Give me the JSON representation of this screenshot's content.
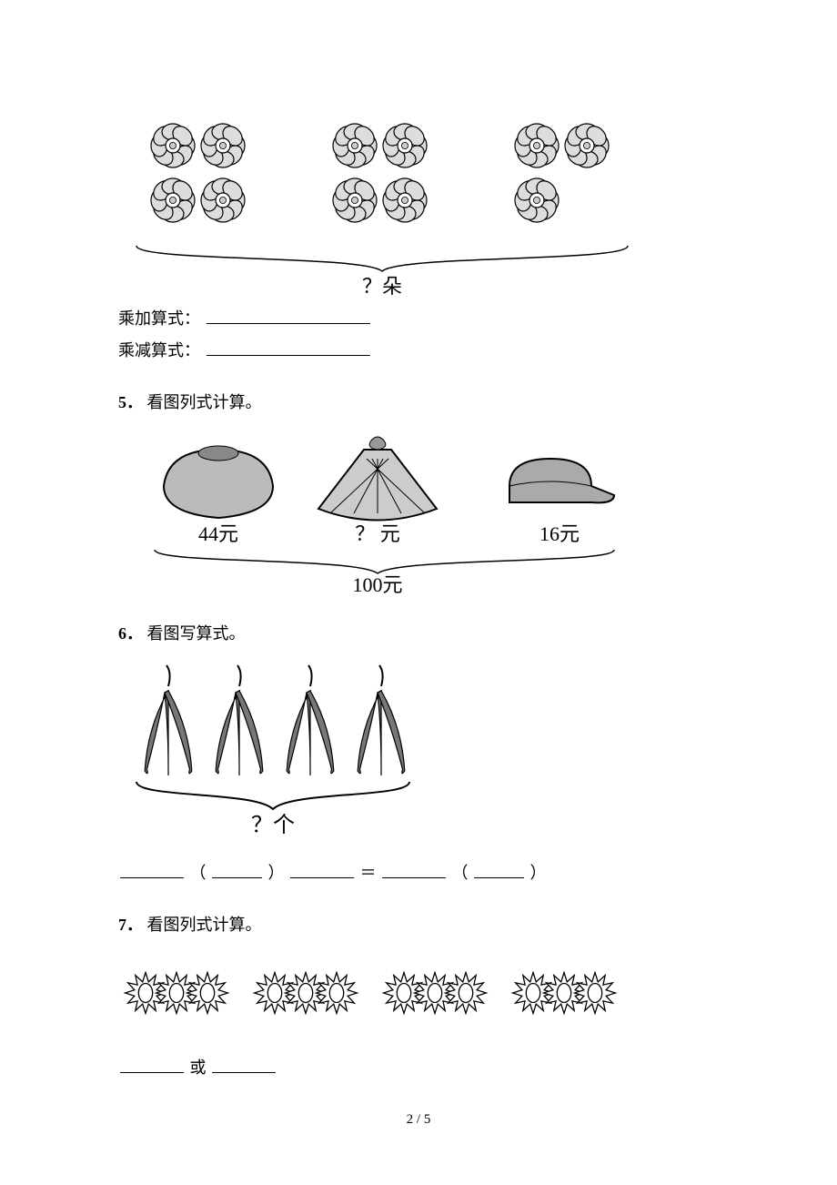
{
  "page": {
    "number": "2 / 5"
  },
  "q4": {
    "label_mul_add": "乘加算式：",
    "label_mul_sub": "乘减算式：",
    "bracket_label": "？朵",
    "flowers": {
      "group_counts": [
        4,
        4,
        3
      ],
      "rows": 2,
      "cols_per_group": 2,
      "stroke": "#000000",
      "fill_dot": "#cccccc",
      "petal_fill": "#dddddd"
    }
  },
  "q5": {
    "num": "5．",
    "title": "看图列式计算。",
    "items": [
      {
        "label": "44元"
      },
      {
        "label": "？ 元"
      },
      {
        "label": "16元"
      }
    ],
    "total_label": "100元",
    "stroke": "#000000"
  },
  "q6": {
    "num": "6．",
    "title": "看图写算式。",
    "bracket_label": "？个",
    "pepper_clusters": 4,
    "eq_mid": "＝",
    "paren_l": "（",
    "paren_r": "）",
    "stroke": "#333333"
  },
  "q7": {
    "num": "7．",
    "title": "看图列式计算。",
    "groups": 4,
    "per_group": 3,
    "or_label": "或",
    "stroke": "#000000"
  }
}
